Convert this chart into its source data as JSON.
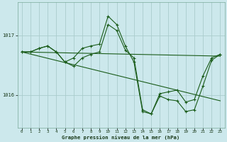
{
  "xlabel": "Graphe pression niveau de la mer (hPa)",
  "background_color": "#cce8ec",
  "grid_color": "#aacccc",
  "line_color": "#1a5c1a",
  "xlim": [
    -0.5,
    23.5
  ],
  "ylim": [
    1015.45,
    1017.55
  ],
  "yticks": [
    1016,
    1017
  ],
  "xticks": [
    0,
    1,
    2,
    3,
    4,
    5,
    6,
    7,
    8,
    9,
    10,
    11,
    12,
    13,
    14,
    15,
    16,
    17,
    18,
    19,
    20,
    21,
    22,
    23
  ],
  "series": [
    {
      "x": [
        0,
        1,
        2,
        3,
        4,
        5,
        6,
        7,
        8,
        9,
        10,
        11,
        12,
        13,
        14,
        15,
        16,
        17,
        18,
        19,
        20,
        21,
        22,
        23
      ],
      "y": [
        1016.72,
        1016.72,
        1016.78,
        1016.82,
        1016.72,
        1016.55,
        1016.48,
        1016.62,
        1016.68,
        1016.72,
        1017.18,
        1017.08,
        1016.75,
        1016.62,
        1015.75,
        1015.68,
        1016.02,
        1016.05,
        1016.08,
        1015.88,
        1015.92,
        1016.32,
        1016.62,
        1016.68
      ],
      "marker": true
    },
    {
      "x": [
        0,
        1,
        2,
        3,
        4,
        5,
        6,
        7,
        8,
        9,
        10,
        11,
        12,
        13,
        14,
        15,
        16,
        17,
        18,
        19,
        20,
        21,
        22,
        23
      ],
      "y": [
        1016.72,
        1016.72,
        1016.78,
        1016.82,
        1016.72,
        1016.55,
        1016.62,
        1016.78,
        1016.82,
        1016.85,
        1017.32,
        1017.18,
        1016.82,
        1016.55,
        1015.72,
        1015.68,
        1015.98,
        1015.92,
        1015.9,
        1015.72,
        1015.75,
        1016.15,
        1016.58,
        1016.68
      ],
      "marker": true
    },
    {
      "x": [
        0,
        23
      ],
      "y": [
        1016.72,
        1015.9
      ],
      "marker": false
    },
    {
      "x": [
        0,
        23
      ],
      "y": [
        1016.72,
        1016.65
      ],
      "marker": false
    }
  ]
}
